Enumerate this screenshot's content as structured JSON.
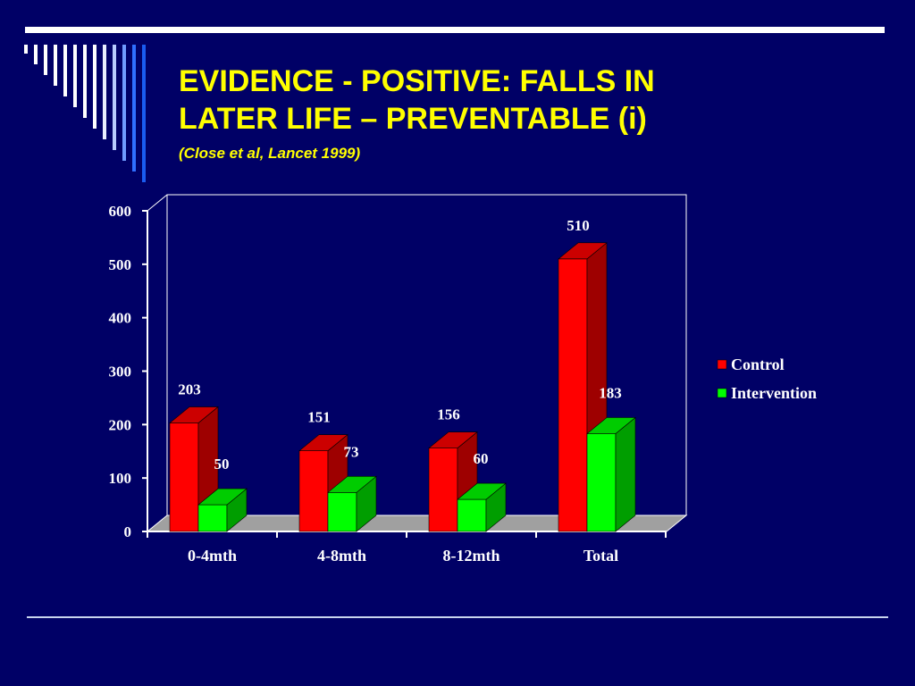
{
  "slide": {
    "title_line1": "EVIDENCE - POSITIVE: FALLS IN",
    "title_line2": "LATER LIFE – PREVENTABLE (i)",
    "subtitle": "(Close  et al, Lancet 1999)"
  },
  "colors": {
    "background": "#000066",
    "title": "#ffff00",
    "control": "#ff0000",
    "intervention": "#00ff00",
    "floor": "#a0a0a0"
  },
  "chart_data": {
    "type": "bar",
    "categories": [
      "0-4mth",
      "4-8mth",
      "8-12mth",
      "Total"
    ],
    "series": [
      {
        "name": "Control",
        "values": [
          203,
          151,
          156,
          510
        ]
      },
      {
        "name": "Intervention",
        "values": [
          50,
          73,
          60,
          183
        ]
      }
    ],
    "ylim": [
      0,
      600
    ],
    "yticks": [
      0,
      100,
      200,
      300,
      400,
      500,
      600
    ],
    "legend_position": "right",
    "grid": false,
    "three_d": true
  }
}
